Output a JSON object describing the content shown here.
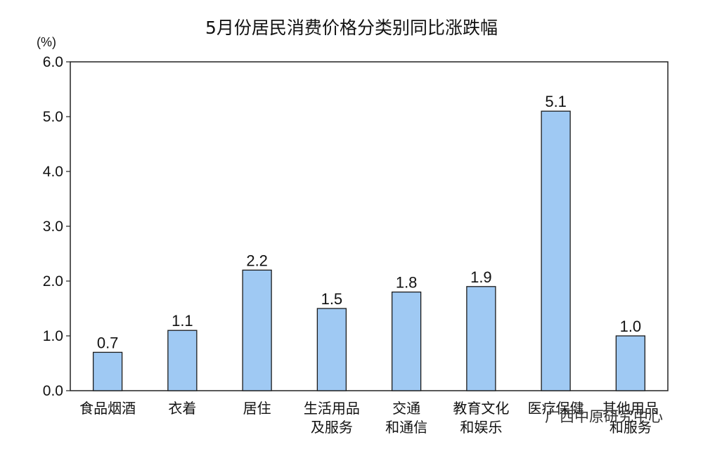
{
  "watermark": "广西中原研究中心",
  "chart_data": {
    "type": "bar",
    "title": "5月份居民消费价格分类别同比涨跌幅",
    "ylabel": "(%)",
    "xlabel": "",
    "ylim": [
      0,
      6
    ],
    "yticks": [
      "0.0",
      "1.0",
      "2.0",
      "3.0",
      "4.0",
      "5.0",
      "6.0"
    ],
    "categories": [
      [
        "食品烟酒"
      ],
      [
        "衣着"
      ],
      [
        "居住"
      ],
      [
        "生活用品",
        "及服务"
      ],
      [
        "交通",
        "和通信"
      ],
      [
        "教育文化",
        "和娱乐"
      ],
      [
        "医疗保健"
      ],
      [
        "其他用品",
        "和服务"
      ]
    ],
    "values": [
      0.7,
      1.1,
      2.2,
      1.5,
      1.8,
      1.9,
      5.1,
      1.0
    ],
    "value_labels": [
      "0.7",
      "1.1",
      "2.2",
      "1.5",
      "1.8",
      "1.9",
      "5.1",
      "1.0"
    ],
    "bar_color": "#9FC9F3",
    "bar_stroke": "#1a1a1a",
    "grid": false,
    "legend": "none"
  }
}
